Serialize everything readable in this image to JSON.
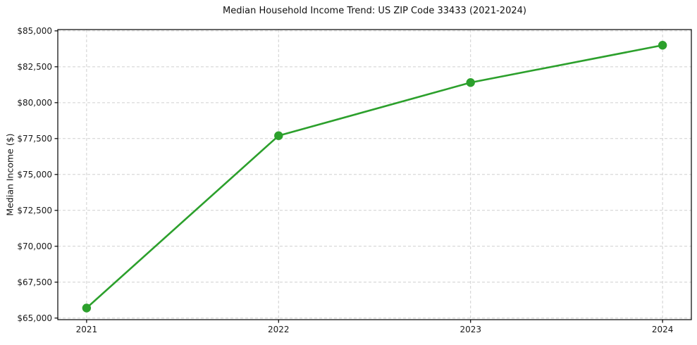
{
  "chart_data": {
    "type": "line",
    "title": "Median Household Income Trend: US ZIP Code 33433 (2021-2024)",
    "xlabel": "",
    "ylabel": "Median Income ($)",
    "x": [
      2021,
      2022,
      2023,
      2024
    ],
    "x_tick_labels": [
      "2021",
      "2022",
      "2023",
      "2024"
    ],
    "series": [
      {
        "name": "Median household income",
        "values": [
          65700,
          77700,
          81400,
          84000
        ],
        "color": "#2ca02c",
        "marker": "circle",
        "marker_radius": 6.2,
        "line_width": 2.6
      }
    ],
    "y_ticks": [
      65000,
      67500,
      70000,
      72500,
      75000,
      77500,
      80000,
      82500,
      85000
    ],
    "y_tick_labels": [
      "$65,000",
      "$67,500",
      "$70,000",
      "$72,500",
      "$75,000",
      "$77,500",
      "$80,000",
      "$82,500",
      "$85,000"
    ],
    "ylim": [
      64890,
      85090
    ],
    "x_padding_frac": 0.05,
    "grid": true,
    "grid_style": "dashed",
    "legend": "none",
    "colors": {
      "line": "#2ca02c",
      "grid": "#cfcfcf",
      "spine": "#000000",
      "tick_label": "#1a1a1a",
      "title": "#111111",
      "background": "#ffffff"
    }
  }
}
